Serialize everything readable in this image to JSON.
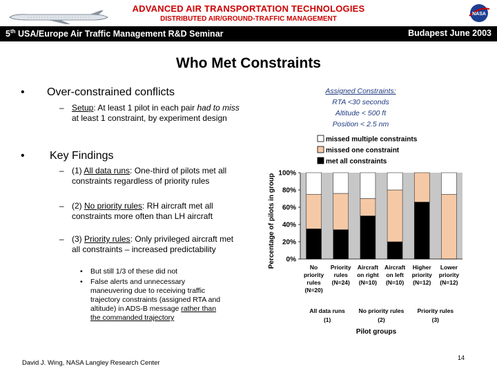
{
  "header": {
    "org_title": "ADVANCED AIR TRANSPORTATION TECHNOLOGIES",
    "org_subtitle": "DISTRIBUTED AIR/GROUND-TRAFFIC MANAGEMENT",
    "seminar_prefix": "5",
    "seminar_sup": "th",
    "seminar_rest": " USA/Europe Air Traffic Management R&D Seminar",
    "location": "Budapest June 2003",
    "logo_text": "NASA",
    "accent_color": "#cc0000",
    "bar_color": "#000000"
  },
  "slide": {
    "title": "Who Met Constraints",
    "bullet1": {
      "text": "Over-constrained conflicts",
      "sub": {
        "setup_label": "Setup",
        "setup_a": ": At least 1 pilot in each pair ",
        "setup_italic": "had to miss",
        "setup_b": " at least 1 constraint, by experiment design"
      }
    },
    "bullet2": {
      "text": "Key Findings",
      "f1_prefix": "(1) ",
      "f1_link": "All data runs",
      "f1_rest": ": One-third of pilots met all constraints regardless of priority rules",
      "f2_prefix": "(2) ",
      "f2_link": "No priority rules",
      "f2_rest": ": RH aircraft met all constraints more often than LH aircraft",
      "f3_prefix": "(3) ",
      "f3_link": "Priority rules",
      "f3_rest": ": Only privileged aircraft met all constraints – increased predictability",
      "sub_a": "But still 1/3 of these did not",
      "sub_b_text": "False alerts and unnecessary maneuvering due to receiving traffic trajectory constraints (assigned RTA and altitude) in ADS-B message ",
      "sub_b_link": "rather than the commanded trajectory"
    },
    "constraints": {
      "heading": "Assigned Constraints:",
      "line1": "RTA <30 seconds",
      "line2": "Altitude < 500 ft",
      "line3": "Position < 2.5 nm"
    },
    "footer": "David J. Wing, NASA Langley Research Center",
    "page_number": "14"
  },
  "chart_data": {
    "type": "bar",
    "stacked": true,
    "title": "",
    "ylabel": "Percentage of pilots in group",
    "xlabel": "Pilot groups",
    "ylim": [
      0,
      100
    ],
    "yticks": [
      "0%",
      "20%",
      "40%",
      "60%",
      "80%",
      "100%"
    ],
    "legend": [
      "missed multiple constraints",
      "missed one constraint",
      "met all constraints"
    ],
    "legend_placement": "top",
    "colors": {
      "missed multiple constraints": "#ffffff",
      "missed one constraint": "#f6c9a6",
      "met all constraints": "#000000"
    },
    "categories": [
      {
        "lines": [
          "No",
          "priority",
          "rules",
          "(N=20)"
        ]
      },
      {
        "lines": [
          "Priority",
          "rules",
          "(N=24)"
        ]
      },
      {
        "lines": [
          "Aircraft",
          "on right",
          "(N=10)"
        ]
      },
      {
        "lines": [
          "Aircraft",
          "on left",
          "(N=10)"
        ]
      },
      {
        "lines": [
          "Higher",
          "priority",
          "(N=12)"
        ]
      },
      {
        "lines": [
          "Lower",
          "priority",
          "(N=12)"
        ]
      }
    ],
    "series": [
      {
        "name": "met all constraints",
        "values": [
          35,
          34,
          50,
          20,
          66,
          0
        ]
      },
      {
        "name": "missed one constraint",
        "values": [
          40,
          42,
          20,
          60,
          34,
          75
        ]
      },
      {
        "name": "missed multiple constraints",
        "values": [
          25,
          24,
          30,
          20,
          0,
          25
        ]
      }
    ],
    "groups": [
      {
        "label": "All data runs",
        "number": "(1)",
        "span": [
          0,
          1
        ]
      },
      {
        "label": "No priority rules",
        "number": "(2)",
        "span": [
          2,
          3
        ]
      },
      {
        "label": "Priority rules",
        "number": "(3)",
        "span": [
          4,
          5
        ]
      }
    ]
  }
}
